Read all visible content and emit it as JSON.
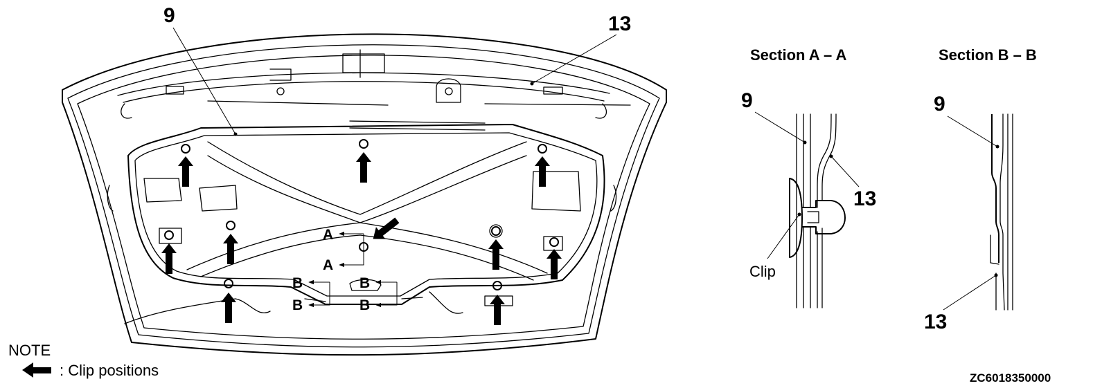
{
  "callouts": {
    "main_insulator": "9",
    "main_hood": "13",
    "sec_a_insulator": "9",
    "sec_a_hood": "13",
    "sec_b_insulator": "9",
    "sec_b_hood": "13"
  },
  "section_labels": {
    "a": "A",
    "b": "B"
  },
  "sections": {
    "a_title": "Section A – A",
    "b_title": "Section B – B",
    "clip_label": "Clip"
  },
  "note": {
    "heading": "NOTE",
    "legend_text": ": Clip positions"
  },
  "figure_code": "ZC6018350000",
  "icons": {
    "clip_arrow": "solid-arrow-icon",
    "clip_hole": "ring-icon",
    "section_pointer": "small-arrow-icon"
  }
}
